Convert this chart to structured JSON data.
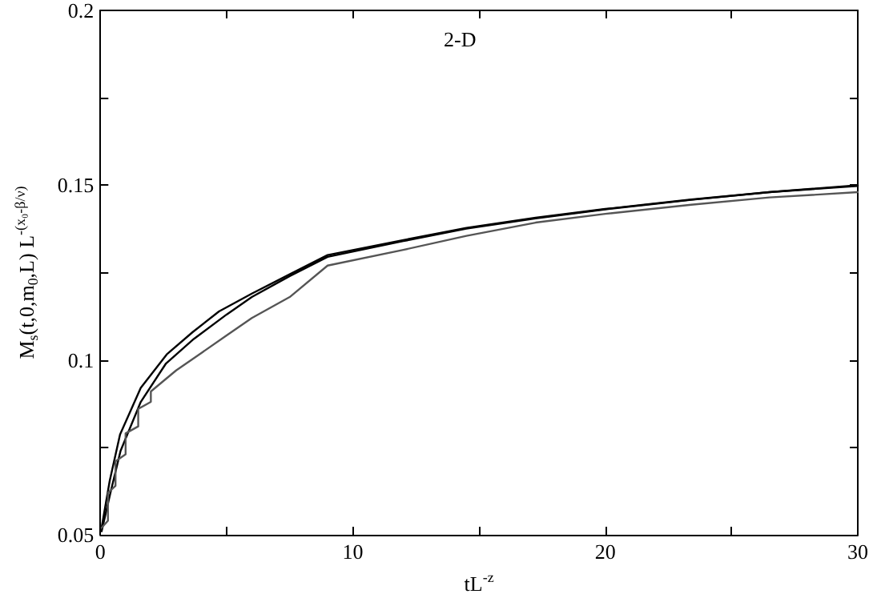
{
  "chart_data": {
    "type": "line",
    "xlabel": "tL$^{-z}$",
    "ylabel": "M$_{s}$(t,0,m$_{0}$,L) L$^{-(x₀-β/ν)}$",
    "annotations": [
      "2-D"
    ],
    "xlim": [
      0,
      30
    ],
    "xticks": [
      0,
      {
        "value": 5,
        "label": null
      },
      10,
      {
        "value": 15,
        "label": null
      },
      20,
      {
        "value": 25,
        "label": null
      },
      30
    ],
    "ylim": [
      0.05,
      0.2
    ],
    "yticks": [
      0.05,
      {
        "value": 0.075,
        "label": null
      },
      0.1,
      {
        "value": 0.125,
        "label": null
      },
      0.15,
      {
        "value": 0.175,
        "label": null
      },
      0.2
    ],
    "grid": false,
    "marker": "none",
    "line_style": "solid",
    "series": [
      {
        "color": "#000000",
        "x": [
          0.05,
          0.37,
          0.78,
          1.6,
          2.63,
          3.66,
          4.7,
          6,
          7.5,
          9,
          12,
          14.5,
          17.24,
          20,
          23.4,
          26.5,
          30
        ],
        "values": [
          0.052,
          0.0654,
          0.0787,
          0.092,
          0.1016,
          0.108,
          0.1139,
          0.119,
          0.1245,
          0.13,
          0.1343,
          0.1378,
          0.1407,
          0.1432,
          0.1459,
          0.148,
          0.15
        ]
      },
      {
        "color": "#000000",
        "x": [
          0.05,
          0.4,
          0.8,
          1.6,
          2.6,
          3.7,
          5,
          6,
          7.5,
          9,
          12,
          14.5,
          17.24,
          20,
          23.4,
          26.5,
          30
        ],
        "values": [
          0.051,
          0.062,
          0.074,
          0.088,
          0.099,
          0.106,
          0.113,
          0.118,
          0.124,
          0.1295,
          0.134,
          0.1376,
          0.1405,
          0.1431,
          0.1458,
          0.148,
          0.1498
        ]
      },
      {
        "color": "#555555",
        "x": [
          0.05,
          0.3,
          0.3,
          0.6,
          0.6,
          1,
          1,
          1.5,
          1.5,
          2,
          2,
          3,
          4,
          5,
          6,
          7.5,
          9,
          12,
          14.5,
          17.24,
          20,
          23.4,
          26.5,
          30
        ],
        "values": [
          0.052,
          0.054,
          0.062,
          0.064,
          0.071,
          0.073,
          0.079,
          0.081,
          0.086,
          0.088,
          0.091,
          0.097,
          0.102,
          0.107,
          0.112,
          0.118,
          0.127,
          0.1315,
          0.1355,
          0.1393,
          0.1418,
          0.1444,
          0.1465,
          0.148
        ]
      }
    ]
  }
}
